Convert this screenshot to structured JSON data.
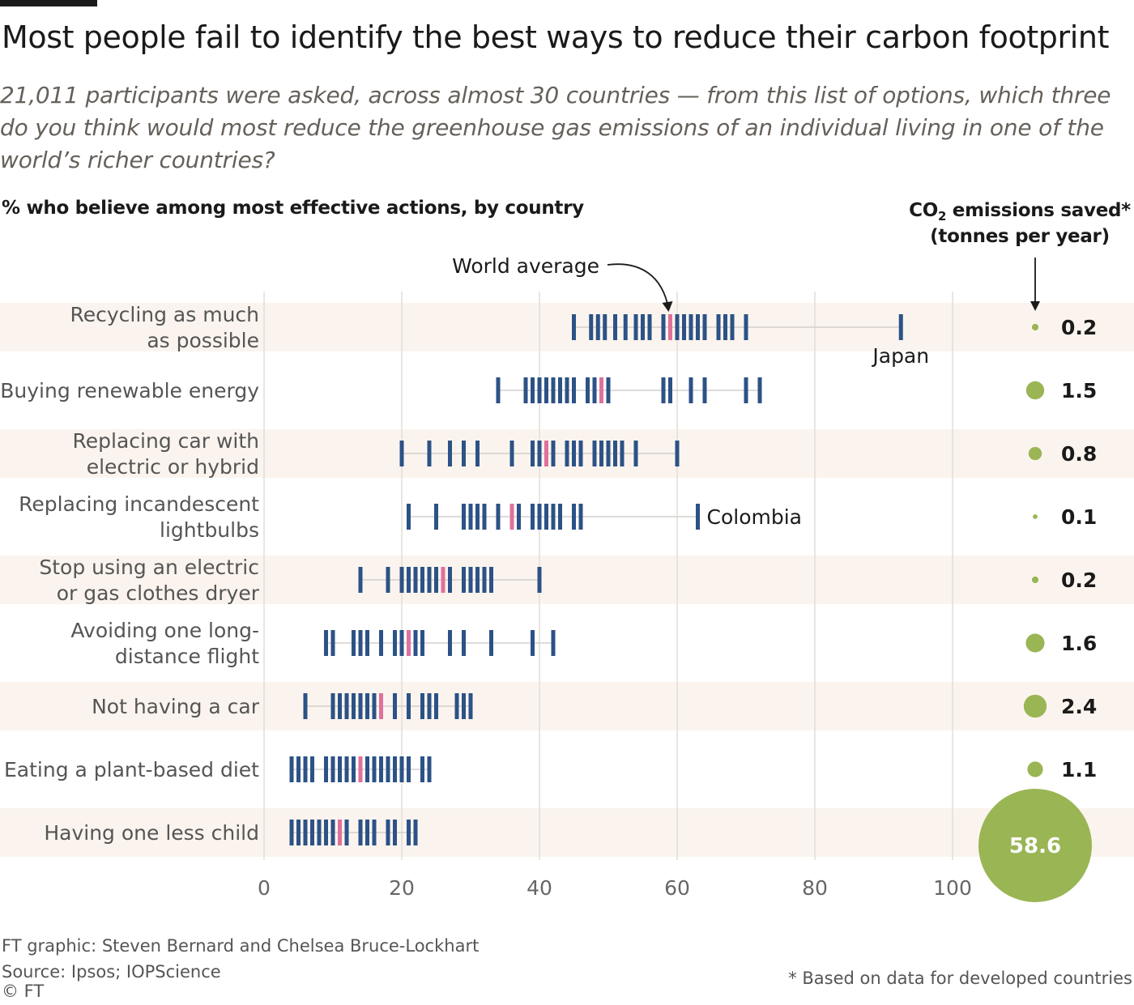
{
  "header": {
    "title": "Most people fail to identify the best ways to reduce their carbon footprint",
    "subtitle": "21,011 participants were asked, across almost 30 countries  — from this list of options, which three do you think would most reduce the greenhouse gas emissions of an individual living in one of the world’s richer countries?",
    "chart_label": "% who believe among most effective actions, by country",
    "side_header_co": "CO",
    "side_header_sub": "2",
    "side_header_rest": " emissions saved*",
    "side_header_line2": "(tonnes per year)"
  },
  "footer": {
    "credit": "FT graphic: Steven Bernard and Chelsea Bruce-Lockhart",
    "source": "Source: Ipsos; IOPScience",
    "copyright": "© FT",
    "footnote": "* Based on data for developed countries"
  },
  "colors": {
    "country_mark": "#2c5286",
    "average_mark": "#e0719a",
    "bubble": "#9ab554",
    "row_band": "#fbf4ee",
    "gridline": "#e2ddd8",
    "range_line": "#d3cfcb"
  },
  "chart_data": {
    "type": "strip",
    "xlim": [
      0,
      100
    ],
    "xticks": [
      0,
      20,
      40,
      60,
      80,
      100
    ],
    "annotations": {
      "world_average": "World average",
      "japan": "Japan",
      "colombia": "Colombia"
    },
    "rows": [
      {
        "label_lines": [
          "Recycling as much",
          "as possible"
        ],
        "countries": [
          45,
          47.5,
          48.5,
          49.5,
          51,
          52.5,
          54,
          55,
          56,
          58,
          60,
          61,
          62,
          63,
          64,
          66,
          67,
          68,
          70,
          92.5
        ],
        "average": 59,
        "co2_saved": "0.2",
        "co2_value": 0.2
      },
      {
        "label_lines": [
          "Buying renewable energy"
        ],
        "countries": [
          34,
          38,
          39,
          40,
          41,
          42,
          43,
          44,
          45,
          47,
          48,
          50,
          58,
          59,
          62,
          64,
          70,
          72
        ],
        "average": 49,
        "co2_saved": "1.5",
        "co2_value": 1.5
      },
      {
        "label_lines": [
          "Replacing car with",
          "electric or hybrid"
        ],
        "countries": [
          20,
          24,
          27,
          29,
          31,
          36,
          39,
          40,
          42,
          44,
          45,
          46,
          48,
          49,
          50,
          51,
          52,
          54,
          60
        ],
        "average": 41,
        "co2_saved": "0.8",
        "co2_value": 0.8
      },
      {
        "label_lines": [
          "Replacing incandescent",
          "lightbulbs"
        ],
        "countries": [
          21,
          25,
          29,
          30,
          31,
          32,
          34,
          37,
          39,
          40,
          41,
          42,
          43,
          45,
          46,
          63
        ],
        "average": 36,
        "co2_saved": "0.1",
        "co2_value": 0.1
      },
      {
        "label_lines": [
          "Stop using an electric",
          "or gas clothes dryer"
        ],
        "countries": [
          14,
          18,
          20,
          21,
          22,
          23,
          24,
          25,
          27,
          29,
          30,
          31,
          32,
          33,
          40
        ],
        "average": 26,
        "co2_saved": "0.2",
        "co2_value": 0.2
      },
      {
        "label_lines": [
          "Avoiding one long-",
          "distance flight"
        ],
        "countries": [
          9,
          10,
          13,
          14,
          15,
          17,
          19,
          20,
          22,
          23,
          27,
          29,
          33,
          39,
          42
        ],
        "average": 21,
        "co2_saved": "1.6",
        "co2_value": 1.6
      },
      {
        "label_lines": [
          "Not having a car"
        ],
        "countries": [
          6,
          10,
          11,
          12,
          13,
          14,
          15,
          16,
          19,
          21,
          23,
          24,
          25,
          28,
          29,
          30
        ],
        "average": 17,
        "co2_saved": "2.4",
        "co2_value": 2.4
      },
      {
        "label_lines": [
          "Eating a plant-based diet"
        ],
        "countries": [
          4,
          5,
          6,
          7,
          9,
          10,
          11,
          12,
          13,
          15,
          16,
          17,
          18,
          19,
          20,
          21,
          23,
          24
        ],
        "average": 14,
        "co2_saved": "1.1",
        "co2_value": 1.1
      },
      {
        "label_lines": [
          "Having one less child"
        ],
        "countries": [
          4,
          5,
          6,
          7,
          8,
          9,
          10,
          12,
          14,
          15,
          16,
          18,
          19,
          21,
          22
        ],
        "average": 11,
        "co2_saved": "58.6",
        "co2_value": 58.6
      }
    ]
  }
}
